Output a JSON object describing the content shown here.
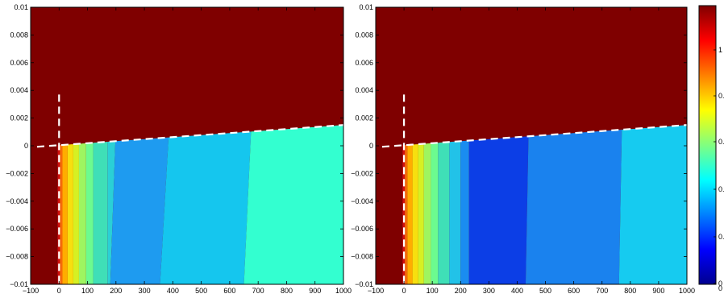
{
  "chart_data": [
    {
      "type": "heatmap",
      "title": "",
      "xlabel": "",
      "ylabel": "",
      "xlim": [
        -100,
        1000
      ],
      "ylim": [
        -0.01,
        0.01
      ],
      "x_ticks": [
        "−100",
        "0",
        "100",
        "200",
        "300",
        "400",
        "500",
        "600",
        "700",
        "800",
        "900",
        "1000"
      ],
      "y_ticks": [
        "−0.01",
        "−0.008",
        "−0.006",
        "−0.004",
        "−0.002",
        "0",
        "0.002",
        "0.004",
        "0.006",
        "0.008",
        "0.01"
      ],
      "background_color": "#7f0000",
      "vertical_boundary_x": 0,
      "slanted_boundary": [
        [
          -100,
          -0.0001
        ],
        [
          1000,
          0.0015
        ]
      ],
      "bands": [
        {
          "x_top": -5,
          "x_bottom": -5,
          "color": "#d01010"
        },
        {
          "x_top": 3,
          "x_bottom": 3,
          "color": "#f56a08"
        },
        {
          "x_top": 12,
          "x_bottom": 12,
          "color": "#ffad00"
        },
        {
          "x_top": 30,
          "x_bottom": 30,
          "color": "#f7df0f"
        },
        {
          "x_top": 50,
          "x_bottom": 50,
          "color": "#d6f023"
        },
        {
          "x_top": 70,
          "x_bottom": 70,
          "color": "#9ef560"
        },
        {
          "x_top": 95,
          "x_bottom": 95,
          "color": "#6cfb8f"
        },
        {
          "x_top": 120,
          "x_bottom": 120,
          "color": "#3fdfb7"
        },
        {
          "x_top": 170,
          "x_bottom": 170,
          "color": "#2ad0d6"
        },
        {
          "x_top": 198,
          "x_bottom": 180,
          "color": "#1e9bf0"
        },
        {
          "x_top": 385,
          "x_bottom": 355,
          "color": "#15c6ee"
        },
        {
          "x_top": 675,
          "x_bottom": 650,
          "color": "#33ffd0"
        }
      ]
    },
    {
      "type": "heatmap",
      "title": "",
      "xlabel": "",
      "ylabel": "",
      "xlim": [
        -100,
        1000
      ],
      "ylim": [
        -0.01,
        0.01
      ],
      "x_ticks": [
        "−100",
        "0",
        "100",
        "200",
        "300",
        "400",
        "500",
        "600",
        "700",
        "800",
        "900",
        "1000"
      ],
      "y_ticks": [
        "−0.01",
        "−0.008",
        "−0.006",
        "−0.004",
        "−0.002",
        "0",
        "0.002",
        "0.004",
        "0.006",
        "0.008",
        "0.01"
      ],
      "background_color": "#7f0000",
      "vertical_boundary_x": 0,
      "slanted_boundary": [
        [
          -100,
          -0.0001
        ],
        [
          1000,
          0.0015
        ]
      ],
      "bands": [
        {
          "x_top": -5,
          "x_bottom": -5,
          "color": "#d01010"
        },
        {
          "x_top": 3,
          "x_bottom": 3,
          "color": "#f56a08"
        },
        {
          "x_top": 12,
          "x_bottom": 12,
          "color": "#ffad00"
        },
        {
          "x_top": 30,
          "x_bottom": 30,
          "color": "#f7df0f"
        },
        {
          "x_top": 50,
          "x_bottom": 50,
          "color": "#d6f023"
        },
        {
          "x_top": 70,
          "x_bottom": 70,
          "color": "#9ef560"
        },
        {
          "x_top": 95,
          "x_bottom": 95,
          "color": "#6cfb8f"
        },
        {
          "x_top": 120,
          "x_bottom": 120,
          "color": "#3fdfb7"
        },
        {
          "x_top": 160,
          "x_bottom": 160,
          "color": "#22c2e8"
        },
        {
          "x_top": 200,
          "x_bottom": 200,
          "color": "#1a8cf0"
        },
        {
          "x_top": 230,
          "x_bottom": 230,
          "color": "#0c3ee6"
        },
        {
          "x_top": 440,
          "x_bottom": 430,
          "color": "#1a82ee"
        },
        {
          "x_top": 770,
          "x_bottom": 760,
          "color": "#16cbf0"
        }
      ]
    }
  ],
  "colorbar": {
    "tick_labels": [
      "1",
      "0.",
      "0.",
      "0.",
      "0.",
      "0",
      "0"
    ],
    "gradient": [
      "#00008f",
      "#0000ff",
      "#0080ff",
      "#00ffff",
      "#80ff80",
      "#ffff00",
      "#ff8000",
      "#ff0000",
      "#800000"
    ]
  }
}
